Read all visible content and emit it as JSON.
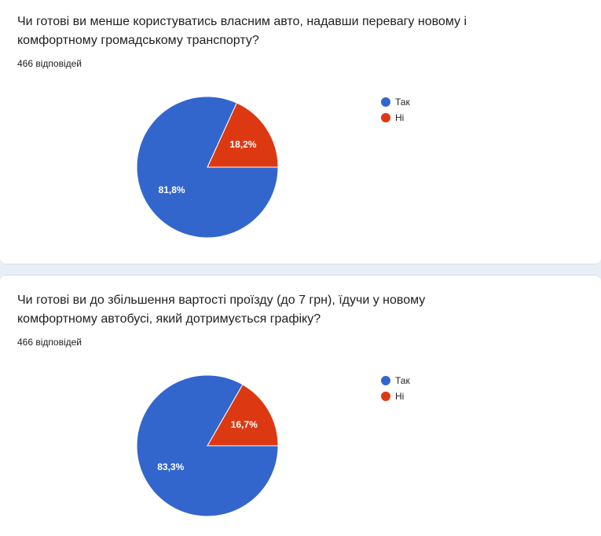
{
  "colors": {
    "so_yes": "#3366cc",
    "so_no": "#dc3912"
  },
  "chart_data": [
    {
      "type": "pie",
      "title": "Чи готові ви менше користуватись власним авто, надавши перевагу новому і комфортному громадському транспорту?",
      "subtitle": "466 відповідей",
      "categories": [
        "Так",
        "Ні"
      ],
      "values": [
        81.8,
        18.2
      ],
      "value_labels": [
        "81,8%",
        "18,2%"
      ],
      "colors": [
        "#3366cc",
        "#dc3912"
      ],
      "legend_position": "right"
    },
    {
      "type": "pie",
      "title": "Чи готові ви до збільшення вартості проїзду (до 7 грн), їдучи у новому комфортному автобусі, який дотримується графіку?",
      "subtitle": "466 відповідей",
      "categories": [
        "Так",
        "Ні"
      ],
      "values": [
        83.3,
        16.7
      ],
      "value_labels": [
        "83,3%",
        "16,7%"
      ],
      "colors": [
        "#3366cc",
        "#dc3912"
      ],
      "legend_position": "right"
    }
  ]
}
